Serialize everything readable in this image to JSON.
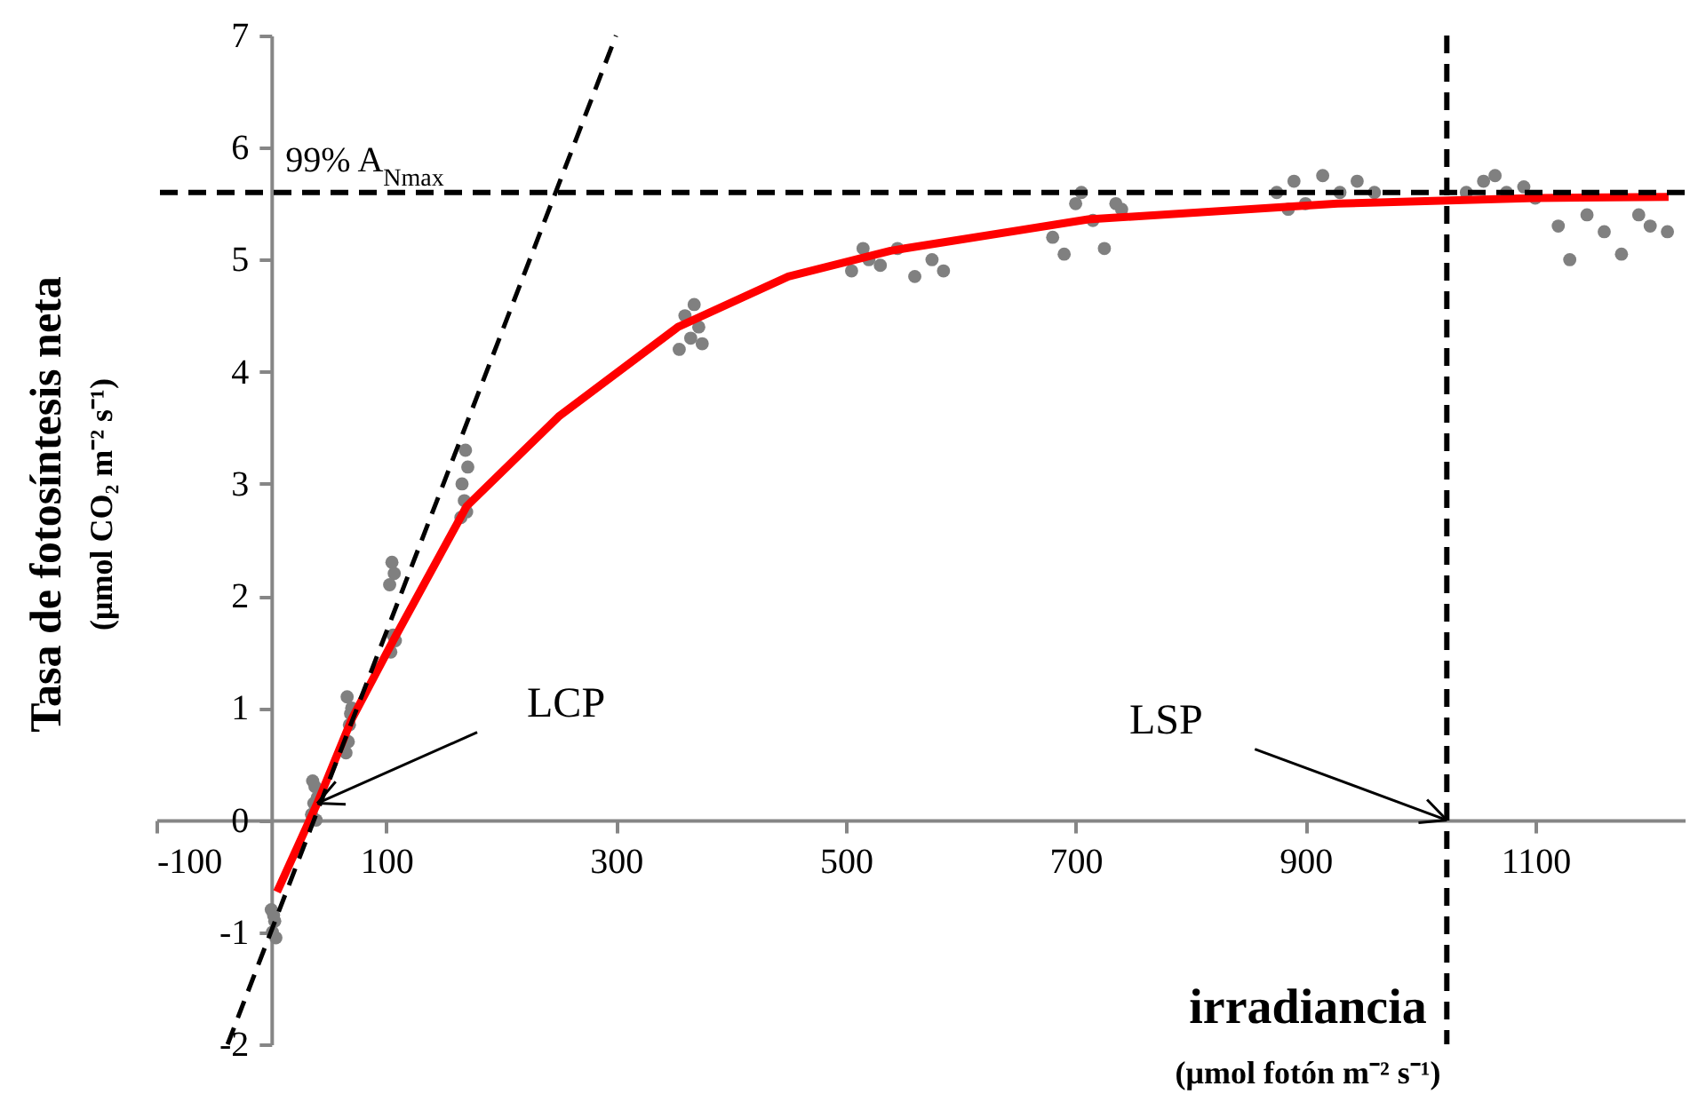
{
  "chart_data": {
    "type": "scatter",
    "xlabel": "irradiancia\n(μmol fotón m⁻² s⁻¹)",
    "ylabel": "Tasa de fotosíntesis neta\n(μmol CO₂ m⁻² s⁻¹)",
    "xlim": [
      -100,
      1230
    ],
    "ylim": [
      -2,
      7
    ],
    "xticks": [
      -100,
      100,
      300,
      500,
      700,
      900,
      1100
    ],
    "yticks": [
      -2,
      -1,
      0,
      1,
      2,
      3,
      4,
      5,
      6,
      7
    ],
    "grid": false,
    "series": [
      {
        "marker": "circle",
        "color": "#808080",
        "x": [
          0,
          3,
          1,
          4,
          2,
          35,
          37,
          38,
          36,
          39,
          40,
          65,
          67,
          68,
          70,
          66,
          69,
          104,
          108,
          106,
          103,
          107,
          105,
          165,
          170,
          168,
          166,
          171,
          169,
          355,
          365,
          372,
          360,
          368,
          375,
          505,
          520,
          530,
          545,
          560,
          575,
          585,
          515,
          680,
          690,
          700,
          715,
          725,
          735,
          705,
          740,
          875,
          890,
          900,
          915,
          930,
          945,
          960,
          885,
          1040,
          1055,
          1065,
          1075,
          1090,
          1100,
          1120,
          1130,
          1145,
          1160,
          1175,
          1190,
          1200,
          1215
        ],
        "values": [
          -0.8,
          -0.9,
          -1.0,
          -1.05,
          -0.85,
          0.05,
          0.15,
          0.3,
          0.35,
          0.0,
          0.2,
          0.6,
          0.7,
          0.85,
          1.0,
          1.1,
          0.95,
          1.5,
          1.6,
          1.65,
          2.1,
          2.2,
          2.3,
          2.7,
          2.75,
          2.85,
          3.0,
          3.15,
          3.3,
          4.2,
          4.3,
          4.4,
          4.5,
          4.6,
          4.25,
          4.9,
          5.0,
          4.95,
          5.1,
          4.85,
          5.0,
          4.9,
          5.1,
          5.2,
          5.05,
          5.5,
          5.35,
          5.1,
          5.5,
          5.6,
          5.45,
          5.6,
          5.7,
          5.5,
          5.75,
          5.6,
          5.7,
          5.6,
          5.45,
          5.6,
          5.7,
          5.75,
          5.6,
          5.65,
          5.55,
          5.3,
          5.0,
          5.4,
          5.25,
          5.05,
          5.4,
          5.3,
          5.25
        ]
      },
      {
        "type": "line",
        "color": "#ff0000",
        "line_style": "solid",
        "x": [
          5,
          40,
          70,
          106,
          170,
          250,
          354,
          450,
          539,
          711,
          928,
          1100,
          1216
        ],
        "values": [
          -0.64,
          0.15,
          0.9,
          1.6,
          2.8,
          3.6,
          4.4,
          4.85,
          5.08,
          5.36,
          5.5,
          5.55,
          5.56
        ]
      },
      {
        "type": "line",
        "color": "#000000",
        "line_style": "dashed",
        "x": [
          -38,
          300
        ],
        "values": [
          -2,
          7
        ]
      }
    ],
    "ref_lines": [
      {
        "axis": "y",
        "value": 5.6,
        "label": "99% A$_{Nmax}$",
        "color": "#000000",
        "line_style": "dashed"
      },
      {
        "axis": "x",
        "value": 1023,
        "color": "#000000",
        "line_style": "dashed"
      }
    ],
    "annotations": [
      {
        "text": "LCP",
        "x": 40,
        "y": 0.15
      },
      {
        "text": "LSP",
        "x": 1023,
        "y": 0
      }
    ]
  }
}
